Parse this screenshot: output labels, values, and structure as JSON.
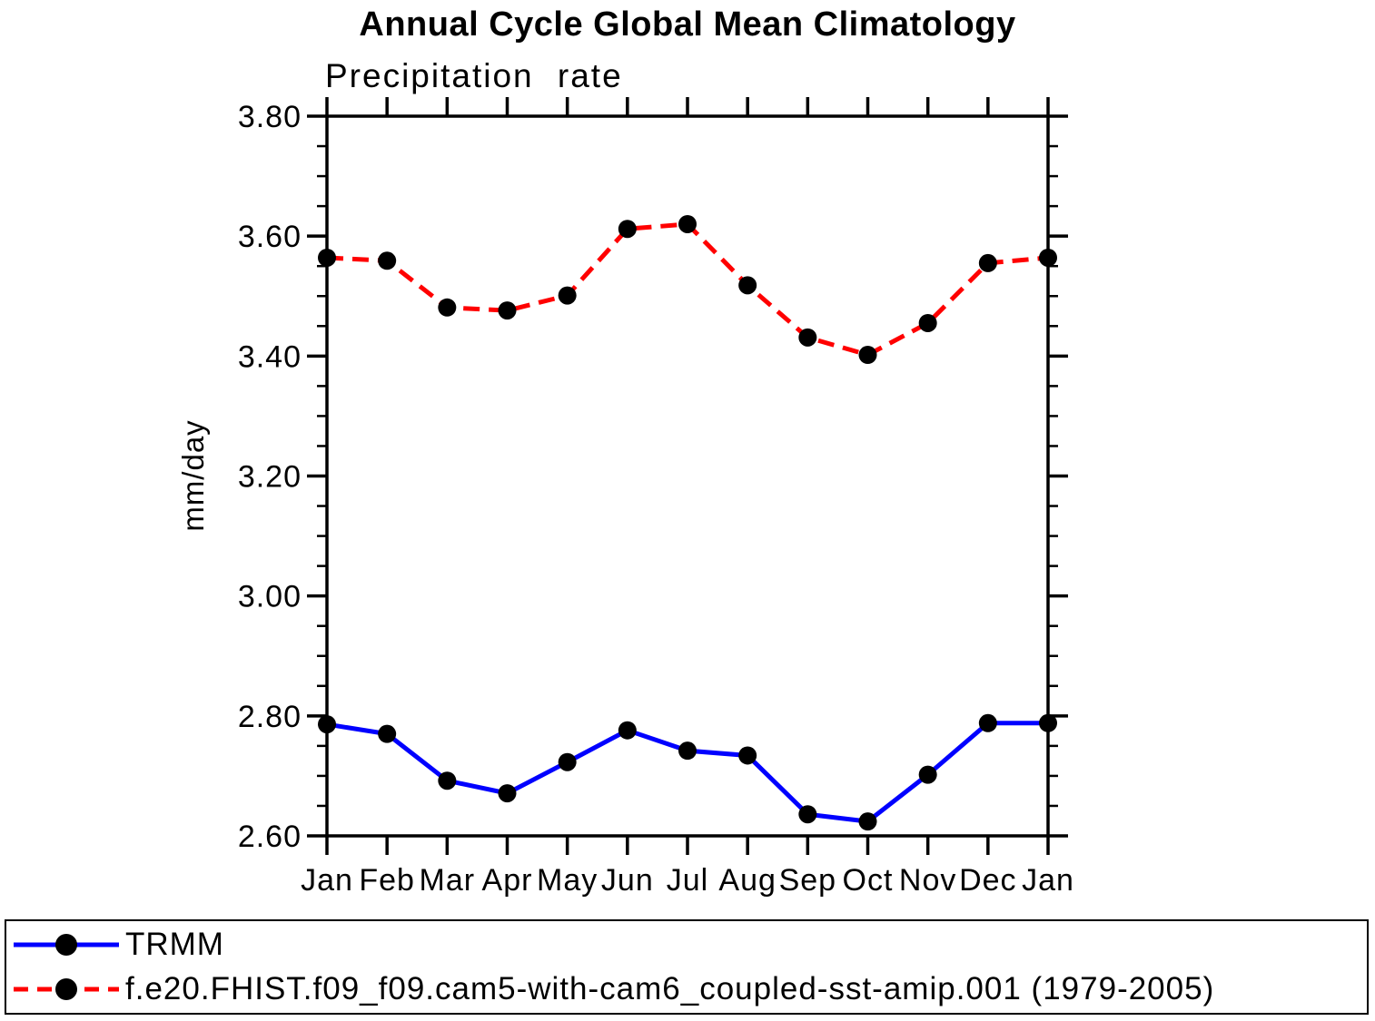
{
  "figure": {
    "title": "Annual Cycle Global Mean Climatology"
  },
  "chart_data": {
    "type": "line",
    "title": "Annual Cycle Global Mean Climatology",
    "subtitle": "Precipitation rate",
    "ylabel": "mm/day",
    "xlabel": "",
    "categories": [
      "Jan",
      "Feb",
      "Mar",
      "Apr",
      "May",
      "Jun",
      "Jul",
      "Aug",
      "Sep",
      "Oct",
      "Nov",
      "Dec",
      "Jan"
    ],
    "ylim": [
      2.6,
      3.8
    ],
    "y_major_step": 0.2,
    "y_minor_step": 0.05,
    "y_tick_labels": [
      "2.60",
      "2.80",
      "3.00",
      "3.20",
      "3.40",
      "3.60",
      "3.80"
    ],
    "grid": false,
    "legend_position": "bottom-box",
    "marker": {
      "shape": "circle",
      "color": "#000000",
      "radius": 10
    },
    "axis_color": "#000000",
    "series": [
      {
        "name": "TRMM",
        "color": "#0000ff",
        "style": "solid",
        "values": [
          2.786,
          2.77,
          2.692,
          2.671,
          2.723,
          2.776,
          2.742,
          2.734,
          2.636,
          2.624,
          2.702,
          2.788,
          2.788
        ]
      },
      {
        "name": "f.e20.FHIST.f09_f09.cam5-with-cam6_coupled-sst-amip.001 (1979-2005)",
        "color": "#ff0000",
        "style": "dashed",
        "values": [
          3.564,
          3.559,
          3.481,
          3.476,
          3.501,
          3.612,
          3.62,
          3.518,
          3.431,
          3.402,
          3.455,
          3.555,
          3.564
        ]
      }
    ]
  }
}
